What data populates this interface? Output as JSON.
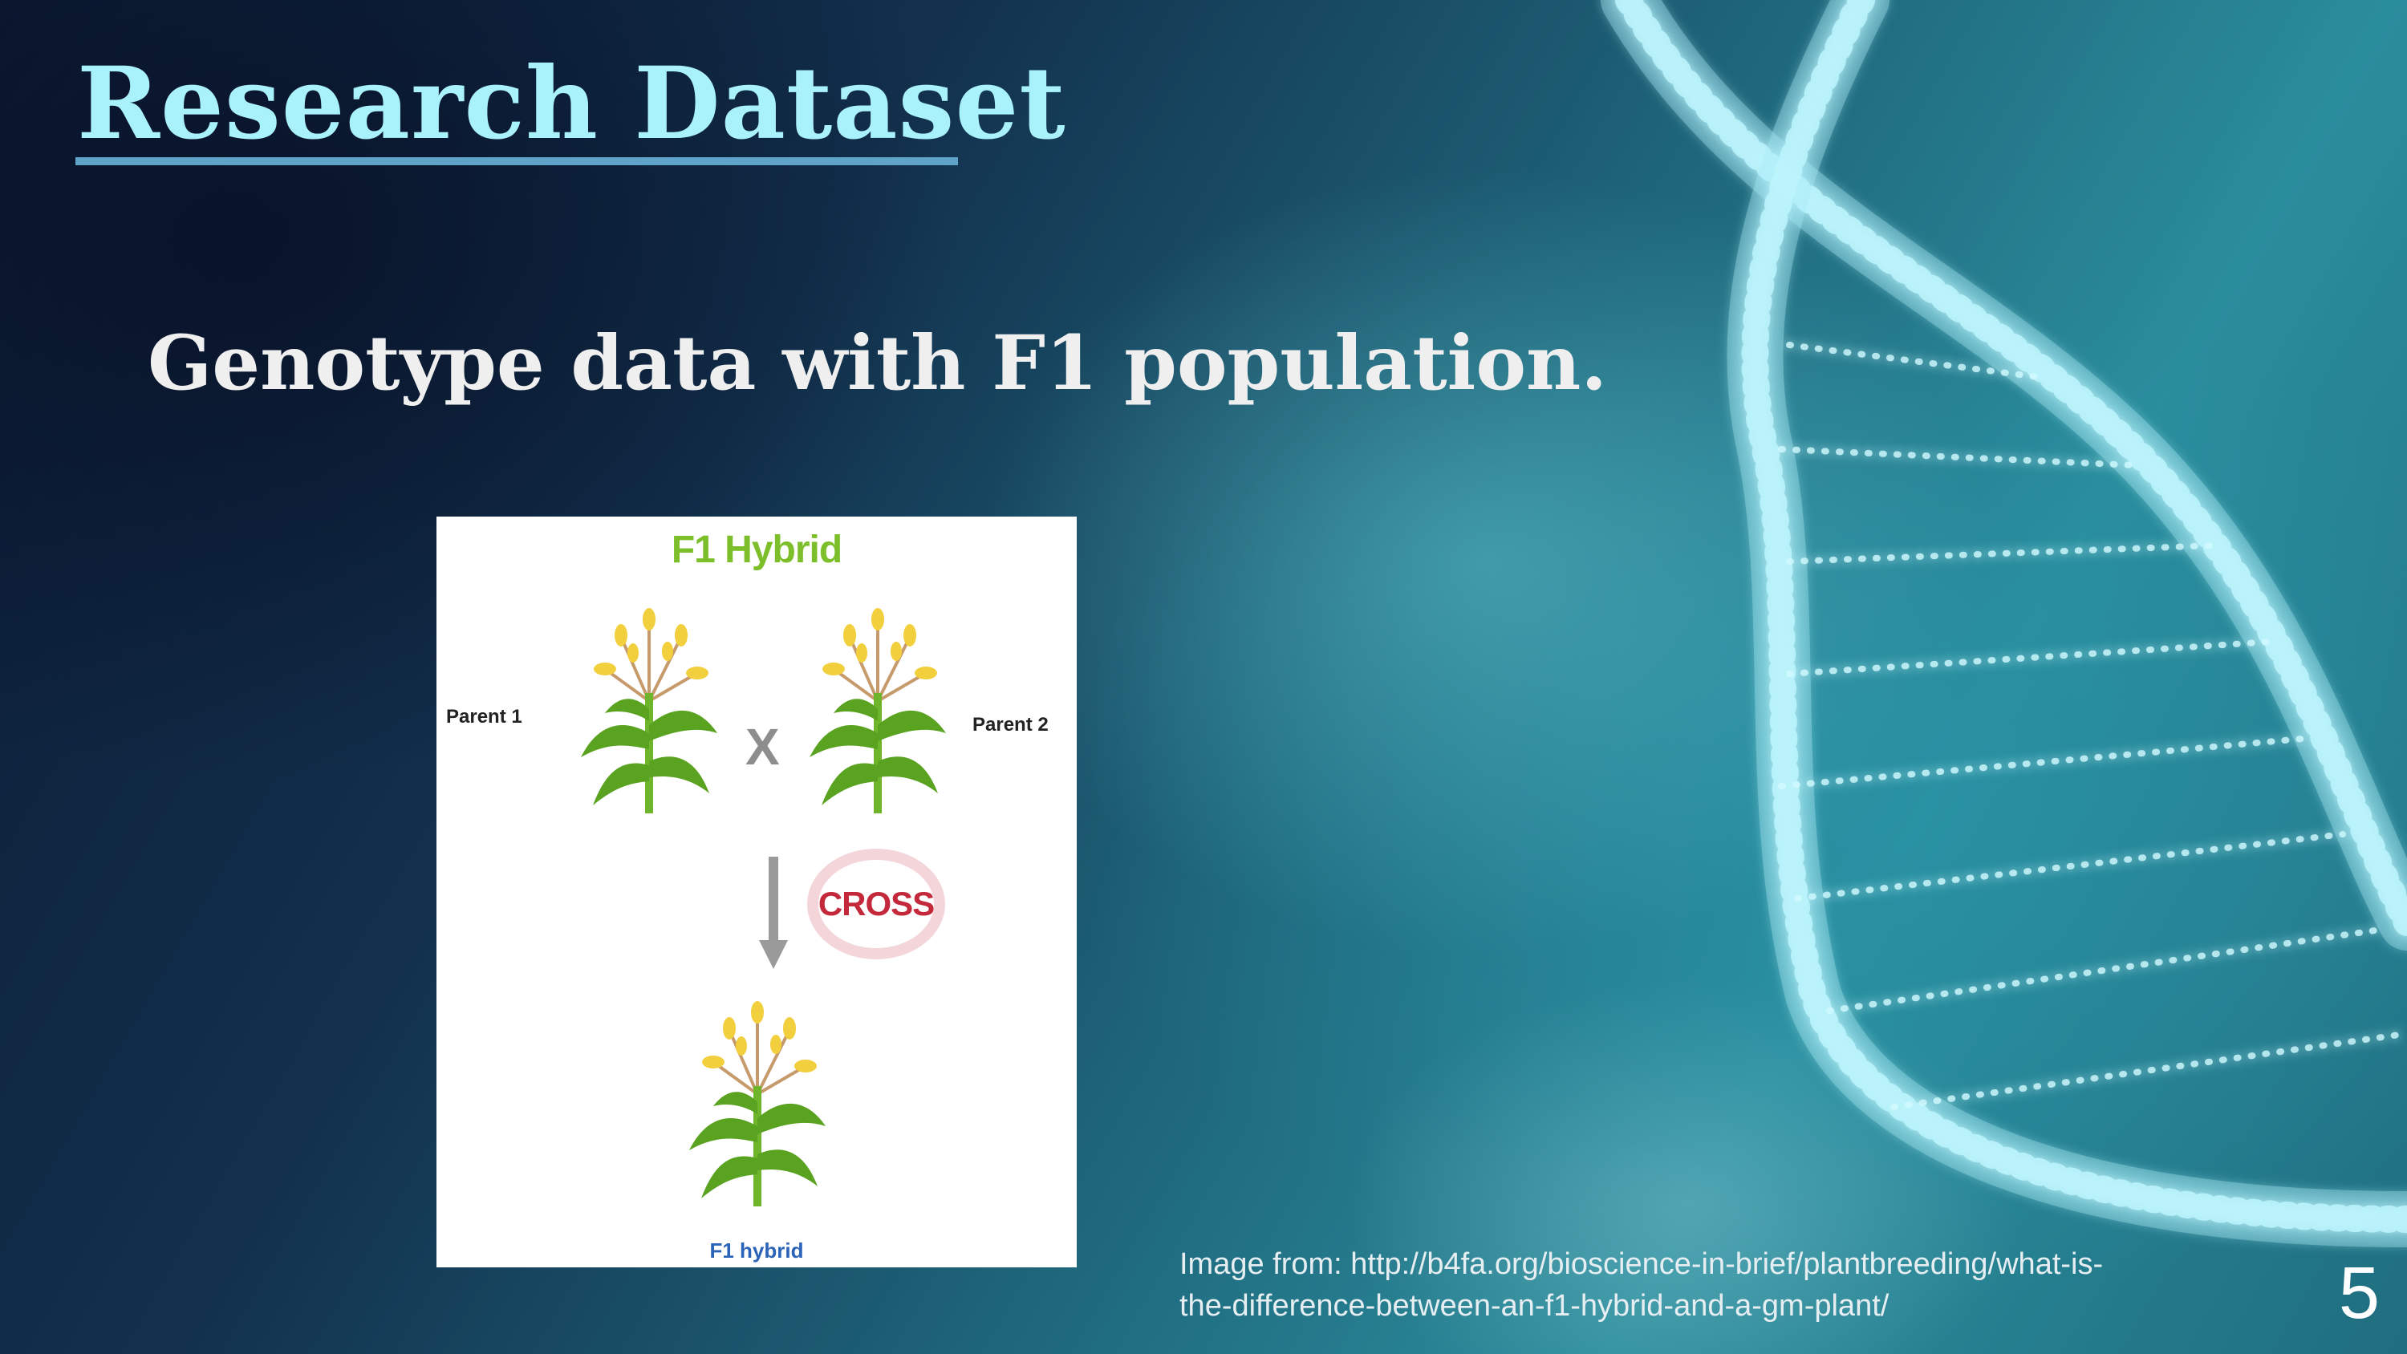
{
  "slide": {
    "title": "Research Dataset",
    "subtitle": "Genotype data with F1 population.",
    "page_number": "5"
  },
  "figure": {
    "title": "F1 Hybrid",
    "parent1_label": "Parent 1",
    "parent2_label": "Parent 2",
    "cross_symbol": "X",
    "cross_label": "CROSS",
    "offspring_label": "F1 hybrid"
  },
  "credit": {
    "line1": "Image from: http://b4fa.org/bioscience-in-brief/plantbreeding/what-is-",
    "line2": "the-difference-between-an-f1-hybrid-and-a-gm-plant/"
  },
  "colors": {
    "title": "#a9f1fb",
    "title_underline": "#5fa3c8",
    "figure_title": "#7cbf2a",
    "cross_label": "#c3283b"
  }
}
